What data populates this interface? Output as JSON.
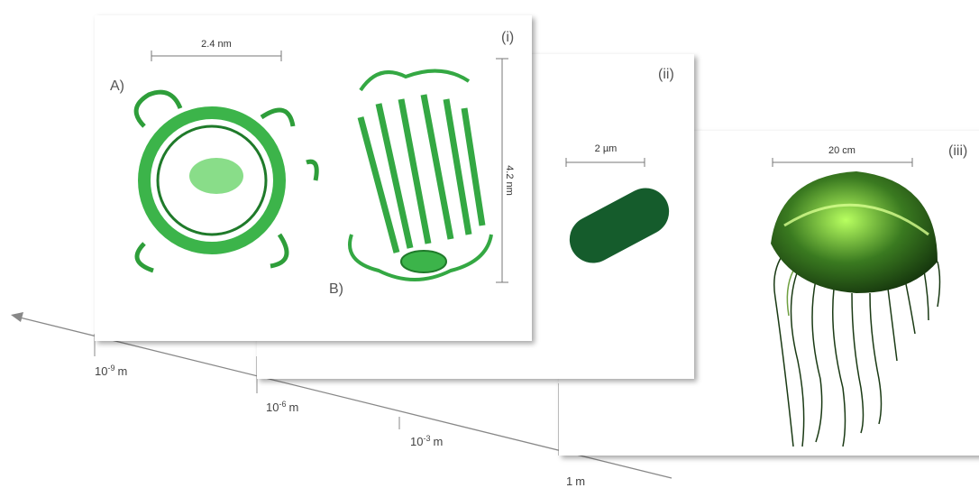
{
  "panels": [
    {
      "label": "(i)",
      "views": [
        "A)",
        "B)"
      ],
      "scales": [
        "2.4 nm",
        "4.2 nm"
      ]
    },
    {
      "label": "(ii)",
      "scales": [
        "2 µm"
      ]
    },
    {
      "label": "(iii)",
      "scales": [
        "20 cm"
      ]
    }
  ],
  "axis": {
    "ticks": [
      {
        "base": "10",
        "exp": "-9",
        "unit": "m"
      },
      {
        "base": "10",
        "exp": "-6",
        "unit": "m"
      },
      {
        "base": "10",
        "exp": "-3",
        "unit": "m"
      },
      {
        "base": "1",
        "unit": "m"
      }
    ]
  }
}
